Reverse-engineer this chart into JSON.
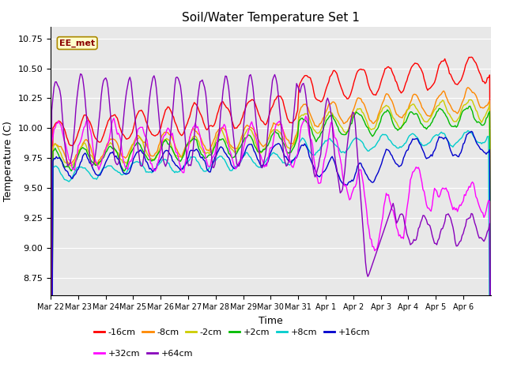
{
  "title": "Soil/Water Temperature Set 1",
  "xlabel": "Time",
  "ylabel": "Temperature (C)",
  "ylim": [
    8.6,
    10.85
  ],
  "annotation": "EE_met",
  "plot_bg_color": "#e8e8e8",
  "fig_bg_color": "#ffffff",
  "series": [
    {
      "label": "-16cm",
      "color": "#ff0000"
    },
    {
      "label": "-8cm",
      "color": "#ff8800"
    },
    {
      "label": "-2cm",
      "color": "#cccc00"
    },
    {
      "label": "+2cm",
      "color": "#00bb00"
    },
    {
      "label": "+8cm",
      "color": "#00cccc"
    },
    {
      "label": "+16cm",
      "color": "#0000cc"
    },
    {
      "label": "+32cm",
      "color": "#ff00ff"
    },
    {
      "label": "+64cm",
      "color": "#8800bb"
    }
  ],
  "xtick_labels": [
    "Mar 22",
    "Mar 23",
    "Mar 24",
    "Mar 25",
    "Mar 26",
    "Mar 27",
    "Mar 28",
    "Mar 29",
    "Mar 30",
    "Mar 31",
    "Apr 1",
    "Apr 2",
    "Apr 3",
    "Apr 4",
    "Apr 5",
    "Apr 6"
  ],
  "grid_color": "#ffffff",
  "linewidth": 1.0
}
